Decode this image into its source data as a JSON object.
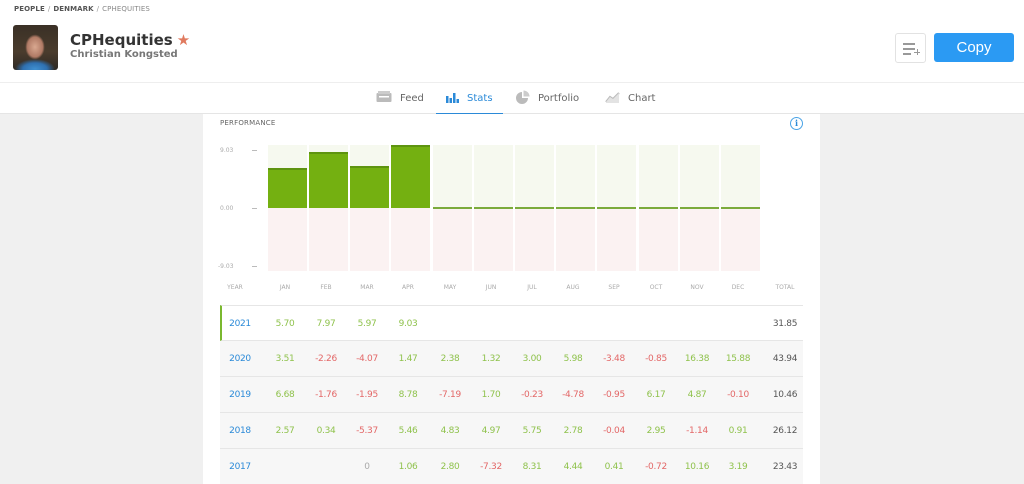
{
  "breadcrumb": [
    "PEOPLE",
    "DENMARK",
    "CPHEQUITIES"
  ],
  "user": {
    "username": "CPHequities",
    "full_name": "Christian Kongsted",
    "starred": true
  },
  "actions": {
    "copy_label": "Copy",
    "watchlist_icon": "add-to-list-icon"
  },
  "tabs": [
    {
      "label": "Feed",
      "icon": "feed-icon",
      "active": false
    },
    {
      "label": "Stats",
      "icon": "bar-chart-icon",
      "active": true
    },
    {
      "label": "Portfolio",
      "icon": "pie-chart-icon",
      "active": false
    },
    {
      "label": "Chart",
      "icon": "line-chart-icon",
      "active": false
    }
  ],
  "performance": {
    "title": "PERFORMANCE",
    "info_icon": "i",
    "y_labels": [
      "9.03",
      "0.00",
      "-9.03"
    ],
    "columns": [
      "YEAR",
      "JAN",
      "FEB",
      "MAR",
      "APR",
      "MAY",
      "JUN",
      "JUL",
      "AUG",
      "SEP",
      "OCT",
      "NOV",
      "DEC",
      "TOTAL"
    ],
    "rows": [
      {
        "year": "2021",
        "months": [
          "5.70",
          "7.97",
          "5.97",
          "9.03",
          "",
          "",
          "",
          "",
          "",
          "",
          "",
          ""
        ],
        "total": "31.85"
      },
      {
        "year": "2020",
        "months": [
          "3.51",
          "-2.26",
          "-4.07",
          "1.47",
          "2.38",
          "1.32",
          "3.00",
          "5.98",
          "-3.48",
          "-0.85",
          "16.38",
          "15.88"
        ],
        "total": "43.94"
      },
      {
        "year": "2019",
        "months": [
          "6.68",
          "-1.76",
          "-1.95",
          "8.78",
          "-7.19",
          "1.70",
          "-0.23",
          "-4.78",
          "-0.95",
          "6.17",
          "4.87",
          "-0.10"
        ],
        "total": "10.46"
      },
      {
        "year": "2018",
        "months": [
          "2.57",
          "0.34",
          "-5.37",
          "5.46",
          "4.83",
          "4.97",
          "5.75",
          "2.78",
          "-0.04",
          "2.95",
          "-1.14",
          "0.91"
        ],
        "total": "26.12"
      },
      {
        "year": "2017",
        "months": [
          "",
          "",
          "0",
          "1.06",
          "2.80",
          "-7.32",
          "8.31",
          "4.44",
          "0.41",
          "-0.72",
          "10.16",
          "3.19"
        ],
        "total": "23.43"
      }
    ]
  },
  "colors": {
    "accent": "#2b9af3",
    "positive": "#8fc24c",
    "negative": "#e36767",
    "bar": "#74b011",
    "star": "#e07a5f"
  },
  "chart_data": {
    "type": "bar",
    "title": "PERFORMANCE",
    "categories": [
      "JAN",
      "FEB",
      "MAR",
      "APR",
      "MAY",
      "JUN",
      "JUL",
      "AUG",
      "SEP",
      "OCT",
      "NOV",
      "DEC"
    ],
    "series": [
      {
        "name": "2021",
        "values": [
          5.7,
          7.97,
          5.97,
          9.03,
          0,
          0,
          0,
          0,
          0,
          0,
          0,
          0
        ]
      }
    ],
    "xlabel": "",
    "ylabel": "",
    "yticks": [
      9.03,
      0.0,
      -9.03
    ],
    "ylim": [
      -9.03,
      9.03
    ],
    "grid": false,
    "legend": "none"
  }
}
